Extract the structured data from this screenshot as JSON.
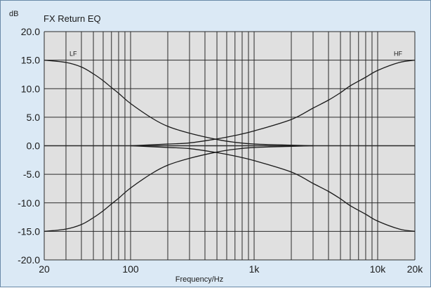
{
  "chart_data": {
    "type": "line",
    "title": "FX Return EQ",
    "ylabel": "dB",
    "xlabel": "Frequency/Hz",
    "xscale": "log",
    "xlim": [
      20,
      20000
    ],
    "ylim": [
      -20,
      20
    ],
    "grid": true,
    "y_ticks": [
      20,
      15,
      10,
      5,
      0,
      -5,
      -10,
      -15,
      -20
    ],
    "y_tick_labels": [
      "20.0",
      "15.0",
      "10.0",
      "5.0",
      "0.0",
      "-5.0",
      "-10.0",
      "-15.0",
      "-20.0"
    ],
    "x_ticks": [
      20,
      100,
      1000,
      10000,
      20000
    ],
    "x_tick_labels": [
      "20",
      "100",
      "1k",
      "10k",
      "20k"
    ],
    "series": [
      {
        "name": "LF",
        "x": [
          20,
          30,
          40,
          50,
          60,
          70,
          80,
          100,
          150,
          200,
          300,
          500,
          700,
          1000,
          2000,
          3000
        ],
        "y": [
          15.0,
          14.6,
          13.8,
          12.6,
          11.4,
          10.2,
          9.2,
          7.4,
          4.8,
          3.4,
          2.2,
          1.1,
          0.6,
          0.3,
          0.1,
          0.0
        ]
      },
      {
        "x": [
          20,
          30,
          40,
          50,
          60,
          70,
          80,
          100,
          150,
          200,
          300,
          500,
          700,
          1000,
          2000,
          3000
        ],
        "y": [
          -15.0,
          -14.6,
          -13.8,
          -12.6,
          -11.4,
          -10.2,
          -9.2,
          -7.4,
          -4.8,
          -3.4,
          -2.2,
          -1.1,
          -0.6,
          -0.3,
          -0.1,
          0.0
        ]
      },
      {
        "name": "HF",
        "x": [
          100,
          200,
          300,
          500,
          700,
          1000,
          2000,
          3000,
          4000,
          5000,
          6000,
          8000,
          10000,
          15000,
          20000
        ],
        "y": [
          0.0,
          0.3,
          0.5,
          1.2,
          1.8,
          2.6,
          4.6,
          6.6,
          8.0,
          9.3,
          10.5,
          12.0,
          13.2,
          14.6,
          15.0
        ]
      },
      {
        "x": [
          100,
          200,
          300,
          500,
          700,
          1000,
          2000,
          3000,
          4000,
          5000,
          6000,
          8000,
          10000,
          15000,
          20000
        ],
        "y": [
          0.0,
          -0.3,
          -0.5,
          -1.2,
          -1.8,
          -2.6,
          -4.6,
          -6.6,
          -8.0,
          -9.3,
          -10.5,
          -12.0,
          -13.2,
          -14.6,
          -15.0
        ]
      }
    ]
  },
  "colors": {
    "background": "#dbe9f5",
    "plot_area": "#e0e0e0",
    "grid": "#2a2a2a",
    "curve": "#1a1a1a",
    "text": "#1a1a1a"
  }
}
